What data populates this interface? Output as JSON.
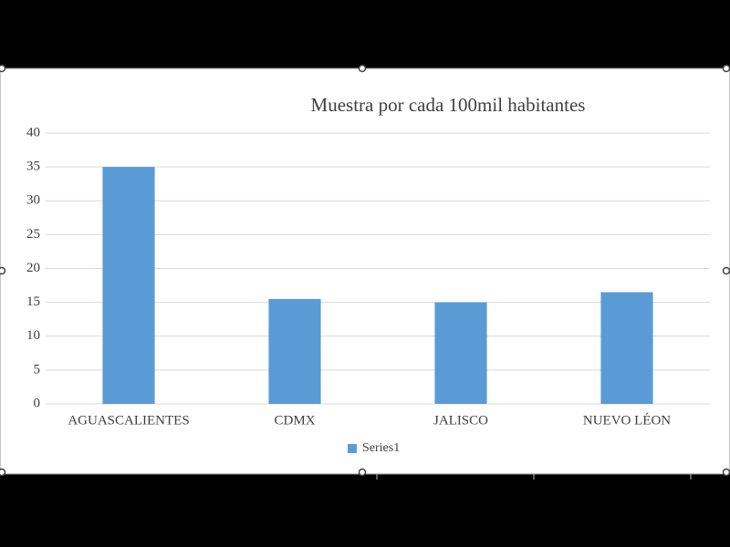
{
  "chart_data": {
    "type": "bar",
    "title": "Muestra por cada 100mil habitantes",
    "categories": [
      "AGUASCALIENTES",
      "CDMX",
      "JALISCO",
      "NUEVO LÉON"
    ],
    "series": [
      {
        "name": "Series1",
        "color": "#5b9bd5",
        "values": [
          35,
          15.5,
          15,
          16.5
        ]
      }
    ],
    "ylim": [
      0,
      40
    ],
    "yticks": [
      0,
      5,
      10,
      15,
      20,
      25,
      30,
      35,
      40
    ],
    "grid": true,
    "legend": "bottom"
  }
}
